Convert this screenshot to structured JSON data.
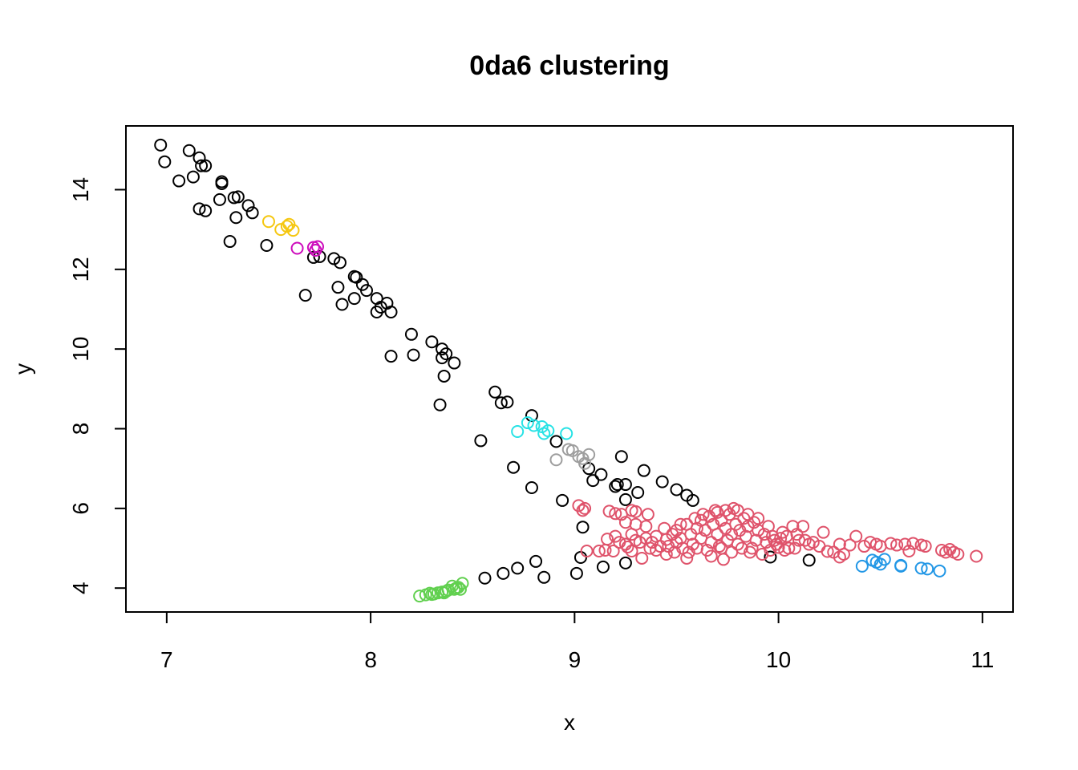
{
  "chart_data": {
    "type": "scatter",
    "title": "0da6 clustering",
    "xlabel": "x",
    "ylabel": "y",
    "xlim": [
      6.8,
      11.15
    ],
    "ylim": [
      3.4,
      15.6
    ],
    "xticks": [
      7,
      8,
      9,
      10,
      11
    ],
    "yticks": [
      4,
      6,
      8,
      10,
      12,
      14
    ],
    "grid": false,
    "legend": "none",
    "marker": "open-circle",
    "series": [
      {
        "color": "#000000",
        "points": [
          [
            6.97,
            15.12
          ],
          [
            6.99,
            14.7
          ],
          [
            7.06,
            14.22
          ],
          [
            7.11,
            14.98
          ],
          [
            7.13,
            14.32
          ],
          [
            7.16,
            14.8
          ],
          [
            7.17,
            14.6
          ],
          [
            7.19,
            14.6
          ],
          [
            7.16,
            13.52
          ],
          [
            7.19,
            13.47
          ],
          [
            7.26,
            13.75
          ],
          [
            7.27,
            14.2
          ],
          [
            7.27,
            14.15
          ],
          [
            7.33,
            13.8
          ],
          [
            7.35,
            13.82
          ],
          [
            7.34,
            13.3
          ],
          [
            7.31,
            12.7
          ],
          [
            7.4,
            13.6
          ],
          [
            7.42,
            13.42
          ],
          [
            7.49,
            12.6
          ],
          [
            7.72,
            12.3
          ],
          [
            7.75,
            12.32
          ],
          [
            7.82,
            12.27
          ],
          [
            7.85,
            12.17
          ],
          [
            7.68,
            11.35
          ],
          [
            7.84,
            11.55
          ],
          [
            7.86,
            11.12
          ],
          [
            7.92,
            11.82
          ],
          [
            7.93,
            11.8
          ],
          [
            7.96,
            11.62
          ],
          [
            7.98,
            11.47
          ],
          [
            7.92,
            11.27
          ],
          [
            8.03,
            11.27
          ],
          [
            8.05,
            11.05
          ],
          [
            8.03,
            10.93
          ],
          [
            8.08,
            11.15
          ],
          [
            8.1,
            10.93
          ],
          [
            8.2,
            10.37
          ],
          [
            8.3,
            10.18
          ],
          [
            8.35,
            10.0
          ],
          [
            8.37,
            9.88
          ],
          [
            8.35,
            9.78
          ],
          [
            8.1,
            9.82
          ],
          [
            8.21,
            9.85
          ],
          [
            8.41,
            9.65
          ],
          [
            8.36,
            9.32
          ],
          [
            8.34,
            8.6
          ],
          [
            8.61,
            8.92
          ],
          [
            8.64,
            8.65
          ],
          [
            8.67,
            8.67
          ],
          [
            8.79,
            8.33
          ],
          [
            8.54,
            7.7
          ],
          [
            8.91,
            7.68
          ],
          [
            8.7,
            7.03
          ],
          [
            8.79,
            6.52
          ],
          [
            8.94,
            6.2
          ],
          [
            9.07,
            7.0
          ],
          [
            9.09,
            6.7
          ],
          [
            9.13,
            6.85
          ],
          [
            9.23,
            7.3
          ],
          [
            9.34,
            6.95
          ],
          [
            9.43,
            6.67
          ],
          [
            9.25,
            6.6
          ],
          [
            9.2,
            6.55
          ],
          [
            9.21,
            6.6
          ],
          [
            9.31,
            6.4
          ],
          [
            9.25,
            6.22
          ],
          [
            9.5,
            6.47
          ],
          [
            9.55,
            6.33
          ],
          [
            9.58,
            6.2
          ],
          [
            9.04,
            5.53
          ],
          [
            9.03,
            4.77
          ],
          [
            9.14,
            4.53
          ],
          [
            9.25,
            4.63
          ],
          [
            8.65,
            4.37
          ],
          [
            8.72,
            4.5
          ],
          [
            8.81,
            4.67
          ],
          [
            8.85,
            4.27
          ],
          [
            9.01,
            4.37
          ],
          [
            8.56,
            4.25
          ],
          [
            9.96,
            4.78
          ],
          [
            10.15,
            4.7
          ]
        ]
      },
      {
        "color": "#DF536B",
        "points": [
          [
            9.02,
            6.07
          ],
          [
            9.05,
            6.0
          ],
          [
            9.04,
            5.95
          ],
          [
            9.17,
            5.93
          ],
          [
            9.2,
            5.87
          ],
          [
            9.23,
            5.85
          ],
          [
            9.28,
            5.95
          ],
          [
            9.3,
            5.92
          ],
          [
            9.36,
            5.85
          ],
          [
            9.16,
            5.23
          ],
          [
            9.2,
            5.3
          ],
          [
            9.22,
            5.15
          ],
          [
            9.25,
            5.1
          ],
          [
            9.12,
            4.93
          ],
          [
            9.15,
            4.95
          ],
          [
            9.19,
            4.93
          ],
          [
            9.06,
            4.93
          ],
          [
            9.26,
            5.03
          ],
          [
            9.28,
            4.93
          ],
          [
            9.33,
            4.75
          ],
          [
            9.3,
            5.2
          ],
          [
            9.35,
            5.25
          ],
          [
            9.38,
            5.15
          ],
          [
            9.4,
            5.3
          ],
          [
            9.42,
            5.05
          ],
          [
            9.45,
            5.22
          ],
          [
            9.45,
            4.85
          ],
          [
            9.48,
            5.35
          ],
          [
            9.5,
            5.15
          ],
          [
            9.5,
            5.45
          ],
          [
            9.52,
            5.25
          ],
          [
            9.53,
            5.0
          ],
          [
            9.55,
            5.6
          ],
          [
            9.55,
            4.75
          ],
          [
            9.57,
            5.35
          ],
          [
            9.58,
            5.1
          ],
          [
            9.6,
            5.5
          ],
          [
            9.6,
            5.0
          ],
          [
            9.62,
            5.7
          ],
          [
            9.62,
            5.25
          ],
          [
            9.64,
            5.45
          ],
          [
            9.65,
            4.95
          ],
          [
            9.66,
            5.8
          ],
          [
            9.67,
            5.15
          ],
          [
            9.68,
            5.6
          ],
          [
            9.7,
            5.35
          ],
          [
            9.7,
            5.9
          ],
          [
            9.71,
            5.05
          ],
          [
            9.72,
            5.7
          ],
          [
            9.73,
            4.72
          ],
          [
            9.74,
            5.5
          ],
          [
            9.75,
            5.2
          ],
          [
            9.76,
            5.85
          ],
          [
            9.77,
            5.35
          ],
          [
            9.78,
            6.0
          ],
          [
            9.79,
            5.6
          ],
          [
            9.8,
            5.1
          ],
          [
            9.81,
            5.45
          ],
          [
            9.83,
            5.75
          ],
          [
            9.84,
            5.3
          ],
          [
            9.85,
            5.55
          ],
          [
            9.86,
            4.9
          ],
          [
            9.88,
            5.65
          ],
          [
            9.89,
            5.2
          ],
          [
            9.9,
            5.45
          ],
          [
            9.92,
            4.85
          ],
          [
            9.93,
            5.35
          ],
          [
            9.95,
            5.55
          ],
          [
            9.96,
            4.95
          ],
          [
            9.98,
            5.2
          ],
          [
            9.99,
            5.1
          ],
          [
            10.0,
            5.02
          ],
          [
            10.02,
            5.4
          ],
          [
            10.03,
            4.95
          ],
          [
            10.05,
            5.0
          ],
          [
            10.07,
            5.55
          ],
          [
            10.08,
            5.0
          ],
          [
            10.1,
            5.2
          ],
          [
            10.12,
            5.55
          ],
          [
            10.15,
            5.1
          ],
          [
            10.17,
            5.15
          ],
          [
            10.2,
            5.05
          ],
          [
            10.22,
            5.4
          ],
          [
            10.24,
            4.92
          ],
          [
            10.27,
            4.9
          ],
          [
            10.3,
            5.1
          ],
          [
            10.32,
            4.85
          ],
          [
            10.3,
            4.78
          ],
          [
            10.35,
            5.08
          ],
          [
            10.38,
            5.3
          ],
          [
            10.42,
            5.05
          ],
          [
            10.45,
            5.15
          ],
          [
            10.48,
            5.1
          ],
          [
            10.5,
            5.05
          ],
          [
            10.55,
            5.12
          ],
          [
            10.58,
            5.08
          ],
          [
            10.62,
            5.1
          ],
          [
            10.64,
            4.93
          ],
          [
            10.66,
            5.12
          ],
          [
            10.7,
            5.08
          ],
          [
            10.72,
            5.05
          ],
          [
            10.8,
            4.95
          ],
          [
            10.82,
            4.9
          ],
          [
            10.84,
            4.97
          ],
          [
            10.86,
            4.9
          ],
          [
            10.88,
            4.85
          ],
          [
            10.97,
            4.8
          ],
          [
            9.25,
            5.65
          ],
          [
            9.3,
            5.6
          ],
          [
            9.35,
            5.55
          ],
          [
            9.28,
            5.35
          ],
          [
            9.32,
            5.15
          ],
          [
            9.37,
            5.0
          ],
          [
            9.4,
            4.95
          ],
          [
            9.44,
            5.5
          ],
          [
            9.46,
            5.05
          ],
          [
            9.49,
            4.9
          ],
          [
            9.52,
            5.6
          ],
          [
            9.56,
            4.9
          ],
          [
            9.59,
            5.75
          ],
          [
            9.63,
            5.85
          ],
          [
            9.67,
            4.8
          ],
          [
            9.69,
            5.95
          ],
          [
            9.72,
            5.0
          ],
          [
            9.74,
            5.95
          ],
          [
            9.77,
            4.9
          ],
          [
            9.8,
            5.95
          ],
          [
            9.82,
            5.0
          ],
          [
            9.85,
            5.85
          ],
          [
            9.87,
            5.0
          ],
          [
            9.9,
            5.75
          ],
          [
            9.94,
            5.15
          ],
          [
            9.97,
            5.3
          ],
          [
            10.01,
            5.25
          ],
          [
            10.04,
            5.3
          ],
          [
            10.09,
            5.35
          ],
          [
            10.13,
            5.2
          ]
        ]
      },
      {
        "color": "#61D04F",
        "points": [
          [
            8.24,
            3.8
          ],
          [
            8.27,
            3.83
          ],
          [
            8.29,
            3.87
          ],
          [
            8.31,
            3.85
          ],
          [
            8.33,
            3.88
          ],
          [
            8.35,
            3.9
          ],
          [
            8.37,
            3.92
          ],
          [
            8.38,
            3.95
          ],
          [
            8.4,
            4.05
          ],
          [
            8.41,
            3.97
          ],
          [
            8.42,
            4.0
          ],
          [
            8.43,
            4.02
          ],
          [
            8.44,
            3.97
          ],
          [
            8.45,
            4.12
          ],
          [
            8.36,
            3.88
          ],
          [
            8.3,
            3.84
          ]
        ]
      },
      {
        "color": "#2297E6",
        "points": [
          [
            10.41,
            4.55
          ],
          [
            10.46,
            4.7
          ],
          [
            10.48,
            4.65
          ],
          [
            10.5,
            4.6
          ],
          [
            10.52,
            4.72
          ],
          [
            10.6,
            4.57
          ],
          [
            10.6,
            4.55
          ],
          [
            10.7,
            4.5
          ],
          [
            10.73,
            4.48
          ],
          [
            10.79,
            4.43
          ]
        ]
      },
      {
        "color": "#28E2E5",
        "points": [
          [
            8.72,
            7.93
          ],
          [
            8.77,
            8.15
          ],
          [
            8.8,
            8.08
          ],
          [
            8.84,
            8.05
          ],
          [
            8.85,
            7.88
          ],
          [
            8.87,
            7.95
          ],
          [
            8.96,
            7.88
          ]
        ]
      },
      {
        "color": "#CD0BBC",
        "points": [
          [
            7.64,
            12.53
          ],
          [
            7.72,
            12.55
          ],
          [
            7.73,
            12.48
          ],
          [
            7.74,
            12.57
          ]
        ]
      },
      {
        "color": "#F5C710",
        "points": [
          [
            7.5,
            13.2
          ],
          [
            7.56,
            13.0
          ],
          [
            7.59,
            13.08
          ],
          [
            7.6,
            13.13
          ],
          [
            7.62,
            12.98
          ]
        ]
      },
      {
        "color": "#9E9E9E",
        "points": [
          [
            8.97,
            7.48
          ],
          [
            8.99,
            7.45
          ],
          [
            9.02,
            7.3
          ],
          [
            9.04,
            7.25
          ],
          [
            9.05,
            7.13
          ],
          [
            9.07,
            7.35
          ],
          [
            8.91,
            7.22
          ]
        ]
      }
    ]
  }
}
